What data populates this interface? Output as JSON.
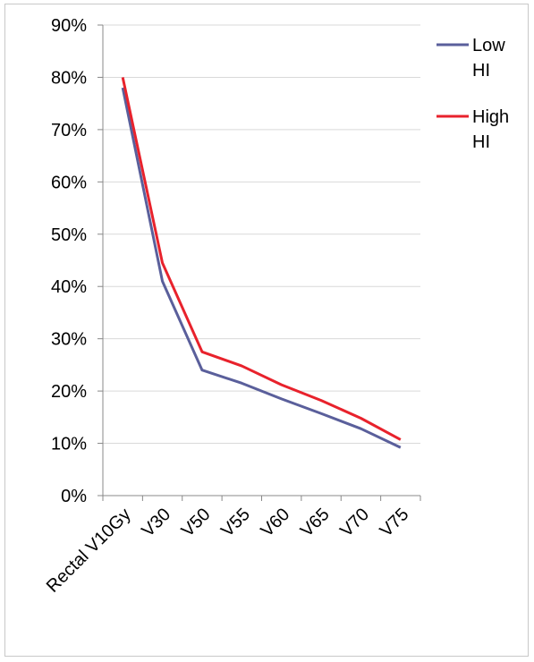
{
  "chart_data": {
    "type": "line",
    "categories": [
      "Rectal V10Gy",
      "V30",
      "V50",
      "V55",
      "V60",
      "V65",
      "V70",
      "V75"
    ],
    "series": [
      {
        "name": "Low HI",
        "values": [
          78,
          41,
          24,
          21.5,
          18.5,
          15.7,
          12.8,
          9.2
        ],
        "color": "#5a5f9b"
      },
      {
        "name": "High HI",
        "values": [
          80,
          44.5,
          27.5,
          24.8,
          21.2,
          18.2,
          14.8,
          10.7
        ],
        "color": "#e8222c"
      }
    ],
    "ylim": [
      0,
      90
    ],
    "yticks": [
      "0%",
      "10%",
      "20%",
      "30%",
      "40%",
      "50%",
      "60%",
      "70%",
      "80%",
      "90%"
    ],
    "grid": true,
    "legend": "top-right",
    "title": "",
    "xlabel": "",
    "ylabel": ""
  }
}
